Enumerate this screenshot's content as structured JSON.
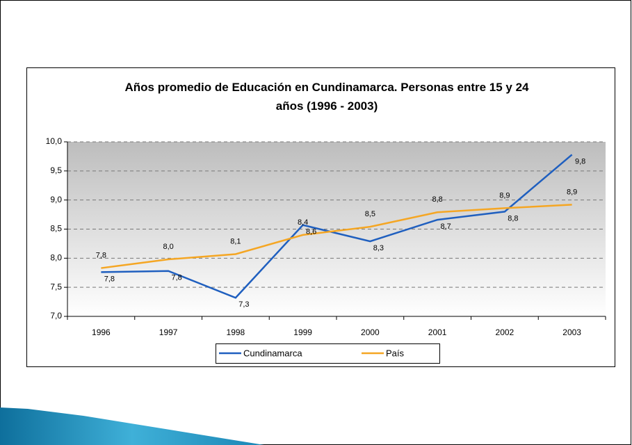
{
  "chart_data": {
    "type": "line",
    "title": "Años promedio de Educación en Cundinamarca. Personas entre 15 y 24 años (1996 - 2003)",
    "categories": [
      "1996",
      "1997",
      "1998",
      "1999",
      "2000",
      "2001",
      "2002",
      "2003"
    ],
    "series": [
      {
        "name": "Cundinamarca",
        "color": "#1f5fbf",
        "values": [
          7.76,
          7.78,
          7.32,
          8.57,
          8.29,
          8.66,
          8.8,
          9.78
        ],
        "value_labels": [
          "7,8",
          "7,8",
          "7,3",
          "8,6",
          "8,3",
          "8,7",
          "8,8",
          "9,8"
        ]
      },
      {
        "name": "País",
        "color": "#f5a623",
        "values": [
          7.83,
          7.98,
          8.07,
          8.4,
          8.54,
          8.79,
          8.86,
          8.92
        ],
        "value_labels": [
          "7,8",
          "8,0",
          "8,1",
          "8,4",
          "8,5",
          "8,8",
          "8,9",
          "8,9"
        ]
      }
    ],
    "ylim": [
      7,
      10
    ],
    "yticks": [
      {
        "value": 7,
        "label": "7,0"
      },
      {
        "value": 7.5,
        "label": "7,5"
      },
      {
        "value": 8,
        "label": "8,0"
      },
      {
        "value": 8.5,
        "label": "8,5"
      },
      {
        "value": 9,
        "label": "9,0"
      },
      {
        "value": 9.5,
        "label": "9,5"
      },
      {
        "value": 10,
        "label": "10,0"
      }
    ],
    "grid": true
  }
}
